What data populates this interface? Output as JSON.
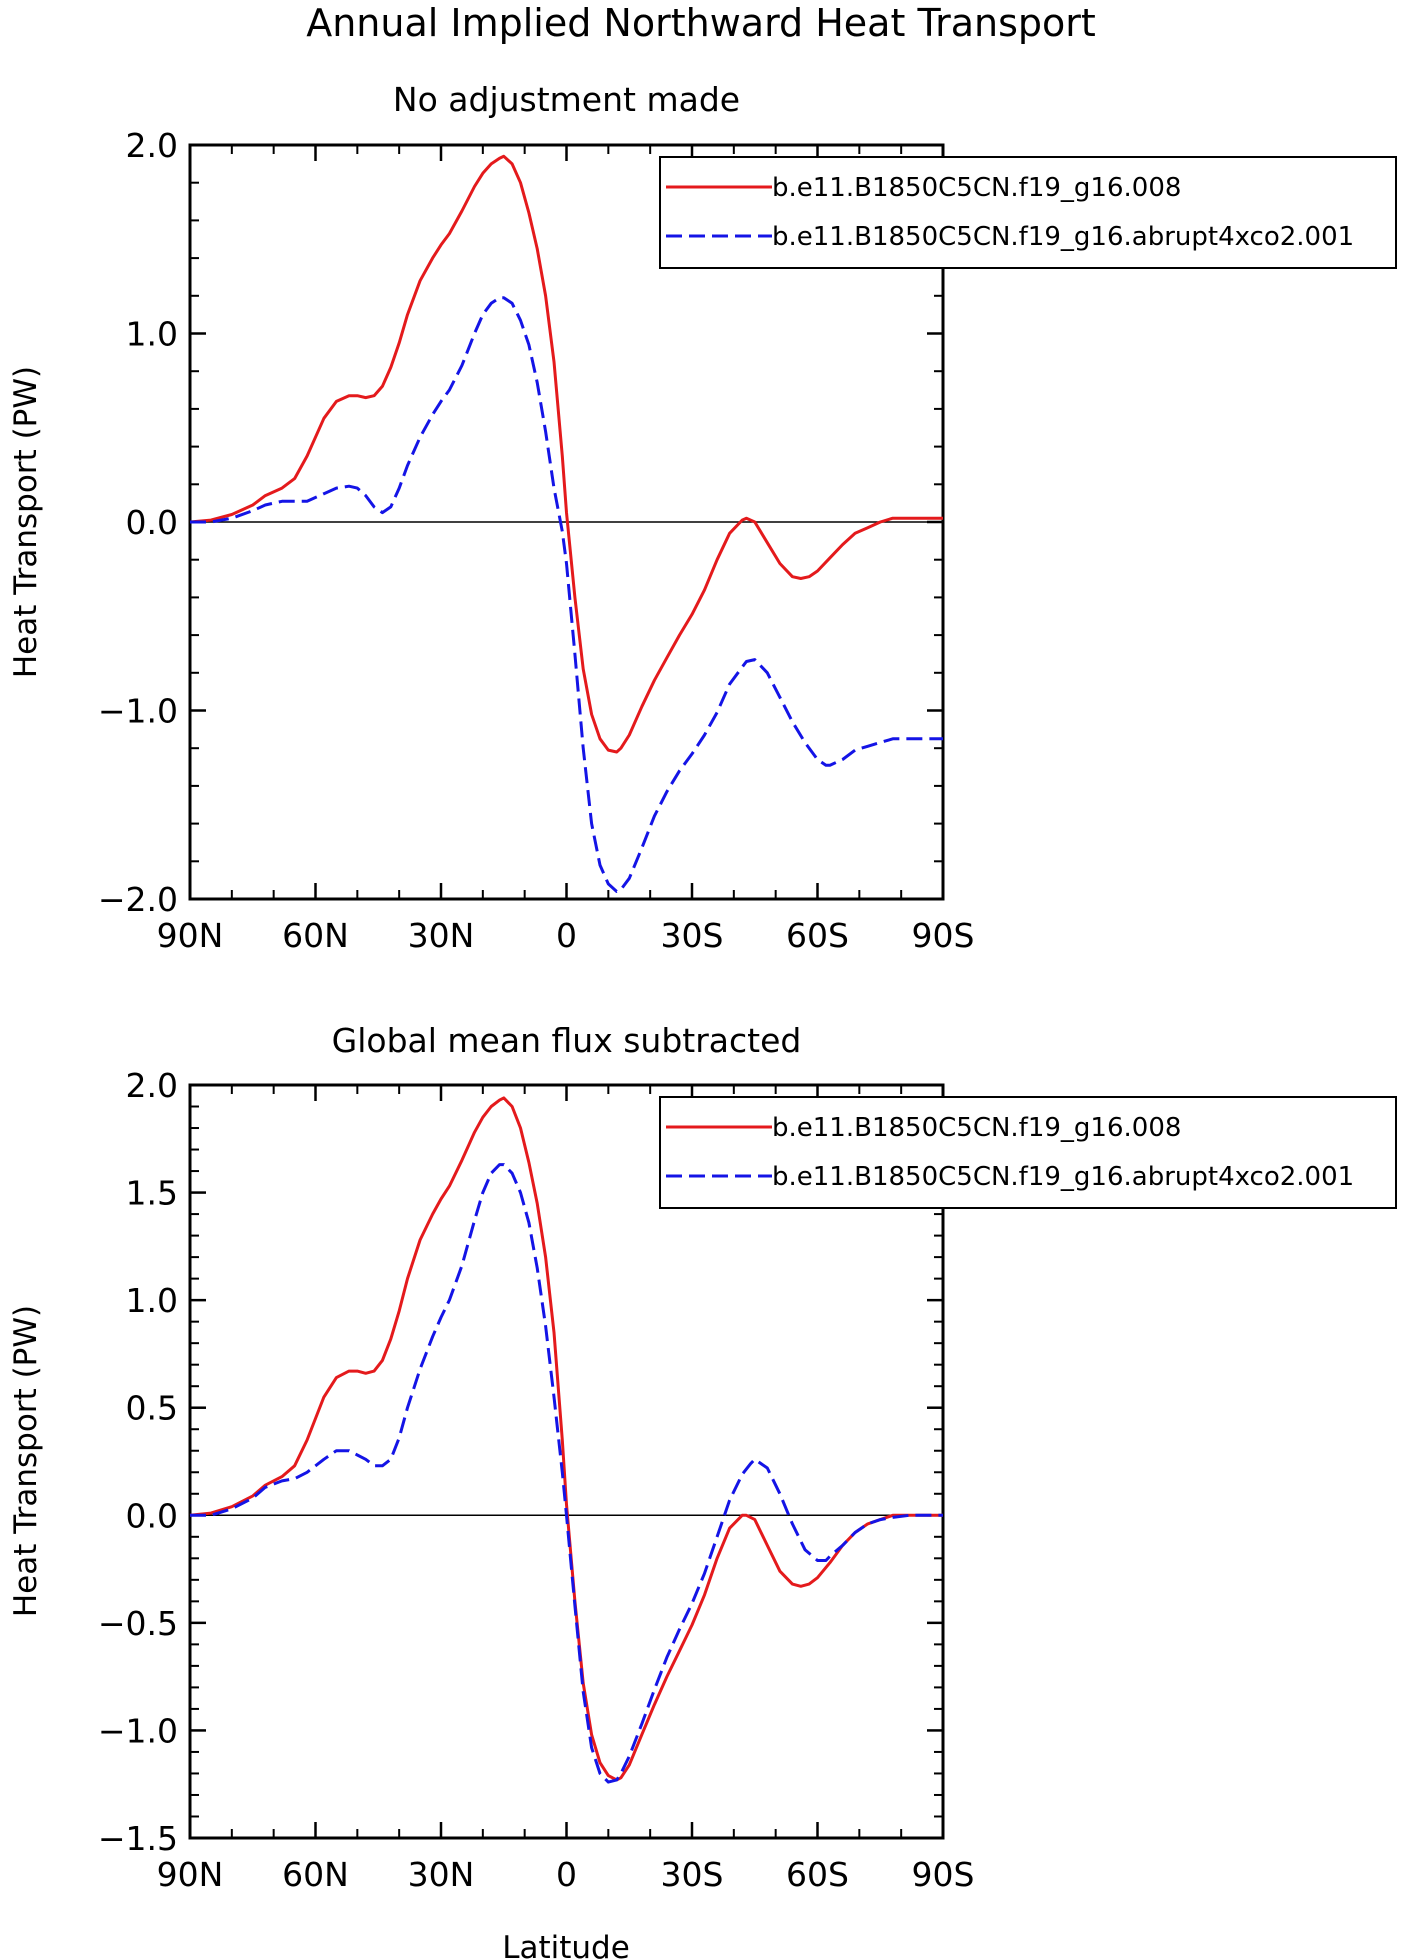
{
  "figure": {
    "title": "Annual Implied Northward Heat Transport",
    "xlabel": "Latitude",
    "ylabel": "Heat Transport (PW)"
  },
  "legend": {
    "items": [
      {
        "label": "b.e11.B1850C5CN.f19_g16.008",
        "color": "#e41a1c",
        "style": "solid"
      },
      {
        "label": "b.e11.B1850C5CN.f19_g16.abrupt4xco2.001",
        "color": "#1414e6",
        "style": "dashed"
      }
    ],
    "placement": "top-right, extending outside plot"
  },
  "chart_data": [
    {
      "type": "line",
      "title": "No adjustment made",
      "xlabel": "",
      "ylabel": "Heat Transport (PW)",
      "xlim": [
        90,
        -90
      ],
      "ylim": [
        -2.0,
        2.0
      ],
      "xticks": [
        90,
        60,
        30,
        0,
        -30,
        -60,
        -90
      ],
      "xtick_labels": [
        "90N",
        "60N",
        "30N",
        "0",
        "30S",
        "60S",
        "90S"
      ],
      "yticks": [
        2.0,
        1.0,
        0.0,
        -1.0,
        -2.0
      ],
      "ytick_labels": [
        "2.0",
        "1.0",
        "0.0",
        "−1.0",
        "−2.0"
      ],
      "zero_line": true,
      "grid": false,
      "series": [
        {
          "name": "b.e11.B1850C5CN.f19_g16.008",
          "color": "#e41a1c",
          "style": "solid",
          "x": [
            90,
            85,
            80,
            75,
            72,
            68,
            65,
            62,
            58,
            55,
            52,
            50,
            48,
            46,
            44,
            42,
            40,
            38,
            35,
            32,
            30,
            28,
            25,
            22,
            20,
            18,
            16,
            15,
            13,
            11,
            9,
            7,
            5,
            3,
            1,
            0,
            -2,
            -4,
            -6,
            -8,
            -10,
            -12,
            -13,
            -15,
            -18,
            -21,
            -24,
            -27,
            -30,
            -33,
            -36,
            -39,
            -42,
            -43,
            -45,
            -48,
            -51,
            -54,
            -56,
            -58,
            -60,
            -63,
            -66,
            -69,
            -72,
            -75,
            -78,
            -82,
            -86,
            -90
          ],
          "y": [
            0.0,
            0.01,
            0.04,
            0.09,
            0.14,
            0.18,
            0.23,
            0.35,
            0.55,
            0.64,
            0.67,
            0.67,
            0.66,
            0.67,
            0.72,
            0.82,
            0.95,
            1.1,
            1.28,
            1.4,
            1.47,
            1.53,
            1.65,
            1.78,
            1.85,
            1.9,
            1.93,
            1.94,
            1.9,
            1.8,
            1.64,
            1.45,
            1.2,
            0.85,
            0.35,
            0.05,
            -0.4,
            -0.78,
            -1.02,
            -1.15,
            -1.21,
            -1.22,
            -1.2,
            -1.13,
            -0.98,
            -0.84,
            -0.72,
            -0.6,
            -0.49,
            -0.36,
            -0.2,
            -0.06,
            0.01,
            0.02,
            0.0,
            -0.11,
            -0.22,
            -0.29,
            -0.3,
            -0.29,
            -0.26,
            -0.19,
            -0.12,
            -0.06,
            -0.03,
            0.0,
            0.02,
            0.02,
            0.02,
            0.02
          ]
        },
        {
          "name": "b.e11.B1850C5CN.f19_g16.abrupt4xco2.001",
          "color": "#1414e6",
          "style": "dashed",
          "x": [
            90,
            85,
            80,
            75,
            72,
            68,
            65,
            62,
            58,
            55,
            52,
            50,
            48,
            46,
            44,
            42,
            40,
            38,
            35,
            32,
            30,
            28,
            25,
            22,
            20,
            18,
            16,
            15,
            13,
            11,
            9,
            7,
            5,
            3,
            1,
            0,
            -2,
            -4,
            -6,
            -8,
            -10,
            -12,
            -13,
            -15,
            -18,
            -21,
            -24,
            -27,
            -30,
            -33,
            -36,
            -39,
            -42,
            -43,
            -45,
            -48,
            -51,
            -54,
            -57,
            -60,
            -62,
            -63,
            -66,
            -69,
            -72,
            -75,
            -78,
            -82,
            -86,
            -90
          ],
          "y": [
            0.0,
            0.0,
            0.02,
            0.06,
            0.09,
            0.11,
            0.11,
            0.11,
            0.15,
            0.18,
            0.19,
            0.18,
            0.14,
            0.08,
            0.05,
            0.08,
            0.18,
            0.3,
            0.45,
            0.57,
            0.64,
            0.7,
            0.83,
            1.0,
            1.1,
            1.16,
            1.19,
            1.19,
            1.16,
            1.07,
            0.94,
            0.74,
            0.48,
            0.18,
            -0.05,
            -0.22,
            -0.7,
            -1.2,
            -1.6,
            -1.82,
            -1.92,
            -1.96,
            -1.95,
            -1.89,
            -1.73,
            -1.56,
            -1.43,
            -1.32,
            -1.23,
            -1.13,
            -1.01,
            -0.86,
            -0.77,
            -0.74,
            -0.73,
            -0.8,
            -0.93,
            -1.06,
            -1.17,
            -1.26,
            -1.29,
            -1.29,
            -1.26,
            -1.21,
            -1.19,
            -1.17,
            -1.15,
            -1.15,
            -1.15,
            -1.15
          ]
        }
      ]
    },
    {
      "type": "line",
      "title": "Global mean flux subtracted",
      "xlabel": "Latitude",
      "ylabel": "Heat Transport (PW)",
      "xlim": [
        90,
        -90
      ],
      "ylim": [
        -1.5,
        2.0
      ],
      "xticks": [
        90,
        60,
        30,
        0,
        -30,
        -60,
        -90
      ],
      "xtick_labels": [
        "90N",
        "60N",
        "30N",
        "0",
        "30S",
        "60S",
        "90S"
      ],
      "yticks": [
        2.0,
        1.5,
        1.0,
        0.5,
        0.0,
        -0.5,
        -1.0,
        -1.5
      ],
      "ytick_labels": [
        "2.0",
        "1.5",
        "1.0",
        "0.5",
        "0.0",
        "−0.5",
        "−1.0",
        "−1.5"
      ],
      "zero_line": true,
      "grid": false,
      "series": [
        {
          "name": "b.e11.B1850C5CN.f19_g16.008",
          "color": "#e41a1c",
          "style": "solid",
          "x": [
            90,
            85,
            80,
            75,
            72,
            68,
            65,
            62,
            58,
            55,
            52,
            50,
            48,
            46,
            44,
            42,
            40,
            38,
            35,
            32,
            30,
            28,
            25,
            22,
            20,
            18,
            16,
            15,
            13,
            11,
            9,
            7,
            5,
            3,
            1,
            0,
            -2,
            -4,
            -6,
            -8,
            -10,
            -12,
            -13,
            -15,
            -18,
            -21,
            -24,
            -27,
            -30,
            -33,
            -36,
            -39,
            -42,
            -43,
            -45,
            -48,
            -51,
            -54,
            -56,
            -58,
            -60,
            -63,
            -66,
            -69,
            -72,
            -75,
            -78,
            -82,
            -86,
            -90
          ],
          "y": [
            0.0,
            0.01,
            0.04,
            0.09,
            0.14,
            0.18,
            0.23,
            0.35,
            0.55,
            0.64,
            0.67,
            0.67,
            0.66,
            0.67,
            0.72,
            0.82,
            0.95,
            1.1,
            1.28,
            1.4,
            1.47,
            1.53,
            1.65,
            1.78,
            1.85,
            1.9,
            1.93,
            1.94,
            1.9,
            1.8,
            1.64,
            1.45,
            1.2,
            0.85,
            0.35,
            0.05,
            -0.4,
            -0.78,
            -1.02,
            -1.15,
            -1.21,
            -1.23,
            -1.22,
            -1.16,
            -1.02,
            -0.88,
            -0.75,
            -0.63,
            -0.51,
            -0.37,
            -0.2,
            -0.06,
            0.0,
            0.0,
            -0.02,
            -0.14,
            -0.26,
            -0.32,
            -0.33,
            -0.32,
            -0.29,
            -0.22,
            -0.14,
            -0.08,
            -0.04,
            -0.02,
            0.0,
            0.0,
            0.0,
            0.0
          ]
        },
        {
          "name": "b.e11.B1850C5CN.f19_g16.abrupt4xco2.001",
          "color": "#1414e6",
          "style": "dashed",
          "x": [
            90,
            85,
            80,
            75,
            72,
            68,
            65,
            62,
            58,
            55,
            52,
            50,
            48,
            46,
            44,
            42,
            40,
            38,
            35,
            32,
            30,
            28,
            25,
            22,
            20,
            18,
            16,
            15,
            13,
            11,
            9,
            7,
            5,
            3,
            1,
            0,
            -2,
            -4,
            -6,
            -8,
            -10,
            -12,
            -13,
            -15,
            -18,
            -21,
            -24,
            -27,
            -30,
            -33,
            -36,
            -39,
            -42,
            -44,
            -45,
            -48,
            -51,
            -54,
            -57,
            -60,
            -62,
            -63,
            -66,
            -69,
            -72,
            -75,
            -78,
            -82,
            -86,
            -90
          ],
          "y": [
            0.0,
            0.0,
            0.03,
            0.08,
            0.13,
            0.16,
            0.17,
            0.2,
            0.26,
            0.3,
            0.3,
            0.28,
            0.26,
            0.23,
            0.23,
            0.26,
            0.36,
            0.5,
            0.68,
            0.83,
            0.92,
            1.0,
            1.16,
            1.37,
            1.5,
            1.59,
            1.63,
            1.63,
            1.59,
            1.5,
            1.36,
            1.15,
            0.88,
            0.55,
            0.2,
            0.0,
            -0.42,
            -0.82,
            -1.08,
            -1.2,
            -1.24,
            -1.23,
            -1.2,
            -1.12,
            -0.97,
            -0.81,
            -0.66,
            -0.53,
            -0.41,
            -0.27,
            -0.1,
            0.07,
            0.19,
            0.24,
            0.26,
            0.22,
            0.1,
            -0.04,
            -0.16,
            -0.21,
            -0.21,
            -0.19,
            -0.14,
            -0.08,
            -0.04,
            -0.02,
            -0.01,
            0.0,
            0.0,
            0.0
          ]
        }
      ]
    }
  ]
}
